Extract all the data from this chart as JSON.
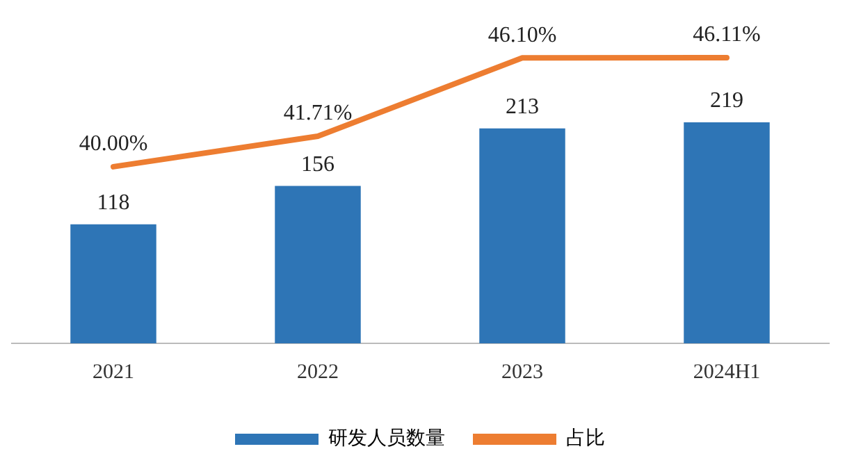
{
  "chart_data": {
    "type": "bar",
    "categories": [
      "2021",
      "2022",
      "2023",
      "2024H1"
    ],
    "series": [
      {
        "name": "研发人员数量",
        "color": "#2e75b6",
        "values": [
          118,
          156,
          213,
          219
        ]
      },
      {
        "name": "占比",
        "type": "line",
        "axis": "y2",
        "color": "#ed7d31",
        "values": [
          40.0,
          41.71,
          46.1,
          46.11
        ],
        "value_labels": [
          "40.00%",
          "41.71%",
          "46.10%",
          "46.11%"
        ]
      }
    ],
    "data_labels": true,
    "tick_labels": "x",
    "grid": false,
    "legend": "bottom",
    "marker": "none",
    "line_style": "solid"
  }
}
